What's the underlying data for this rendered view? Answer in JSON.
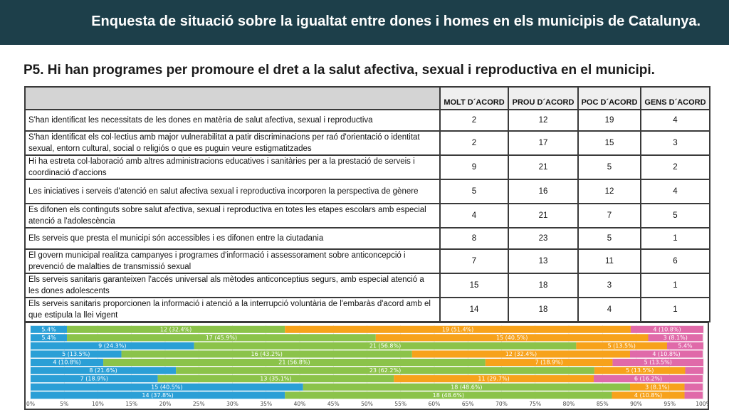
{
  "header": {
    "title": "Enquesta de situació sobre la  igualtat entre dones i homes en els municipis de Catalunya."
  },
  "question": "P5. Hi han programes per promoure el dret a la salut afectiva, sexual i reproductiva en el municipi.",
  "table": {
    "columns": [
      "MOLT D´ACORD",
      "PROU D´ACORD",
      "POC D´ACORD",
      "GENS D´ACORD"
    ],
    "rows": [
      {
        "label": "S'han identificat les necessitats de les dones en matèria de salut afectiva, sexual i reproductiva",
        "values": [
          "2",
          "12",
          "19",
          "4"
        ]
      },
      {
        "label": "S'han identificat els col·lectius amb major vulnerabilitat a patir discriminacions per raó d'orientació o identitat sexual, entorn cultural, social o religiós o que es puguin veure estigmatitzades",
        "values": [
          "2",
          "17",
          "15",
          "3"
        ]
      },
      {
        "label": "Hi ha estreta col·laboració amb altres administracions educatives i sanitàries per a la prestació de serveis i coordinació d'accions",
        "values": [
          "9",
          "21",
          "5",
          "2"
        ]
      },
      {
        "label": "Les iniciatives i serveis d'atenció en salut afectiva sexual i reproductiva incorporen la perspectiva de gènere",
        "values": [
          "5",
          "16",
          "12",
          "4"
        ]
      },
      {
        "label": "Es difonen els continguts sobre salut afectiva, sexual i reproductiva en totes les etapes escolars amb especial atenció a l'adolescència",
        "values": [
          "4",
          "21",
          "7",
          "5"
        ]
      },
      {
        "label": "Els serveis que presta el municipi són accessibles i es difonen entre la ciutadania",
        "values": [
          "8",
          "23",
          "5",
          "1"
        ]
      },
      {
        "label": "El govern municipal realitza campanyes i programes d'informació i assessorament sobre anticoncepció i prevenció de malalties de transmissió sexual",
        "values": [
          "7",
          "13",
          "11",
          "6"
        ]
      },
      {
        "label": "Els serveis sanitaris garanteixen l'accés universal als mètodes anticonceptius segurs, amb especial atenció a les dones adolescents",
        "values": [
          "15",
          "18",
          "3",
          "1"
        ]
      },
      {
        "label": "Els serveis sanitaris proporcionen la informació i atenció a la interrupció voluntària de l'embaràs d'acord amb el que estipula la llei vigent",
        "values": [
          "14",
          "18",
          "4",
          "1"
        ]
      }
    ]
  },
  "chart_data": {
    "type": "bar",
    "orientation": "horizontal",
    "stacked": "percent",
    "title": "",
    "xlabel": "",
    "ylabel": "",
    "xlim": [
      0,
      100
    ],
    "categories": [
      "1",
      "2",
      "3",
      "4",
      "5",
      "6",
      "7",
      "8",
      "9"
    ],
    "x_ticks": [
      "0%",
      "5%",
      "10%",
      "15%",
      "20%",
      "25%",
      "30%",
      "35%",
      "40%",
      "45%",
      "50%",
      "55%",
      "60%",
      "65%",
      "70%",
      "75%",
      "80%",
      "85%",
      "90%",
      "95%",
      "100%"
    ],
    "series": [
      {
        "name": "MOLT D´ACORD",
        "color": "#2a9fd6",
        "values": [
          5.4,
          5.4,
          24.3,
          13.5,
          10.8,
          21.6,
          18.9,
          40.5,
          37.8
        ],
        "labels": [
          "5.4%",
          "5.4%",
          "9 (24.3%)",
          "5 (13.5%)",
          "4 (10.8%)",
          "8 (21.6%)",
          "7 (18.9%)",
          "15 (40.5%)",
          "14 (37.8%)"
        ]
      },
      {
        "name": "PROU D´ACORD",
        "color": "#8bc34a",
        "values": [
          32.4,
          45.9,
          56.8,
          43.2,
          56.8,
          62.2,
          35.1,
          48.6,
          48.6
        ],
        "labels": [
          "12 (32.4%)",
          "17 (45.9%)",
          "21 (56.8%)",
          "16 (43.2%)",
          "21 (56.8%)",
          "23 (62.2%)",
          "13 (35.1%)",
          "18 (48.6%)",
          "18 (48.6%)"
        ]
      },
      {
        "name": "POC D´ACORD",
        "color": "#f7a21b",
        "values": [
          51.4,
          40.5,
          13.5,
          32.4,
          18.9,
          13.5,
          29.7,
          8.1,
          10.8
        ],
        "labels": [
          "19 (51.4%)",
          "15 (40.5%)",
          "5 (13.5%)",
          "12 (32.4%)",
          "7 (18.9%)",
          "5 (13.5%)",
          "11 (29.7%)",
          "3 (8.1%)",
          "4 (10.8%)"
        ]
      },
      {
        "name": "GENS D´ACORD",
        "color": "#e06aa9",
        "values": [
          10.8,
          8.1,
          5.4,
          10.8,
          13.5,
          2.7,
          16.2,
          2.7,
          2.7
        ],
        "labels": [
          "4 (10.8%)",
          "3 (8.1%)",
          "5.4%",
          "4 (10.8%)",
          "5 (13.5%)",
          "",
          "6 (16.2%)",
          "",
          ""
        ]
      }
    ]
  }
}
